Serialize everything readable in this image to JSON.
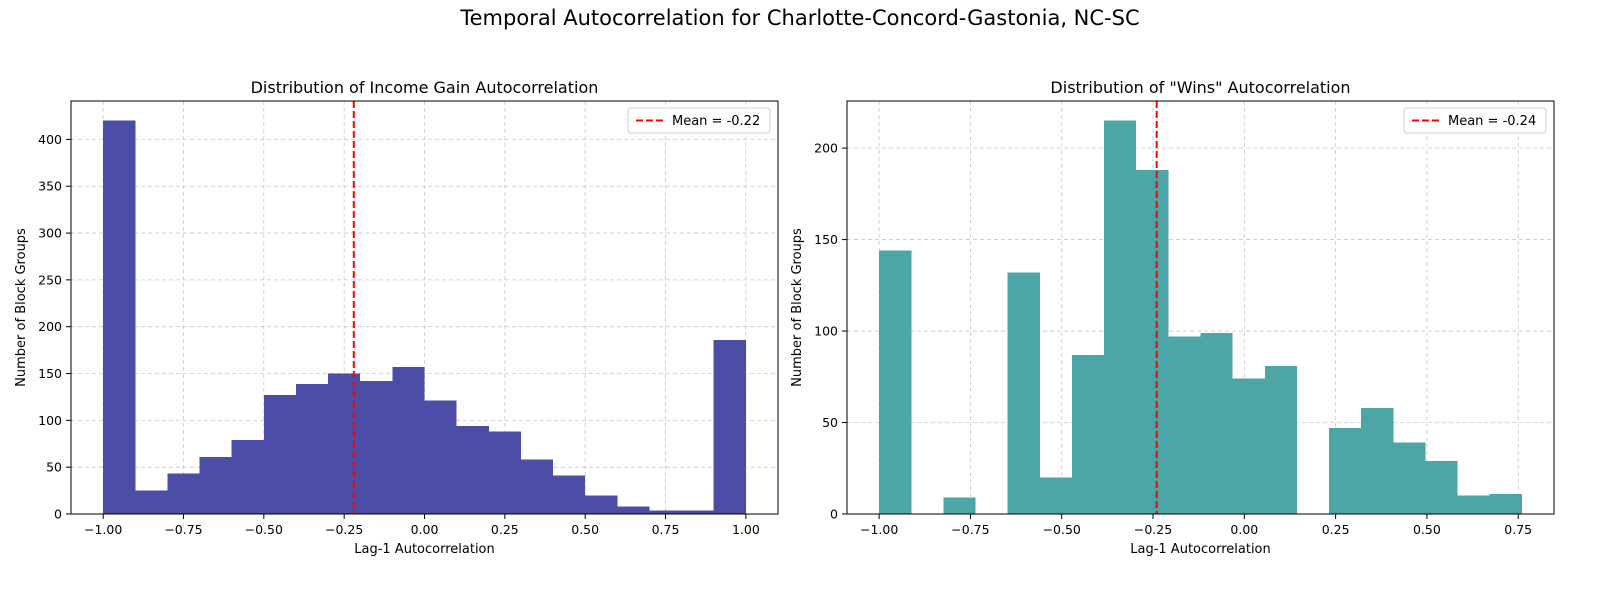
{
  "figure": {
    "title": "Temporal Autocorrelation for Charlotte-Concord-Gastonia, NC-SC"
  },
  "chart_data": [
    {
      "type": "bar",
      "title": "Distribution of Income Gain Autocorrelation",
      "xlabel": "Lag-1 Autocorrelation",
      "ylabel": "Number of Block Groups",
      "color": "#4B4DA6",
      "bin_edges": [
        -1.0,
        -0.9,
        -0.8,
        -0.7,
        -0.6,
        -0.5,
        -0.4,
        -0.3,
        -0.2,
        -0.1,
        0.0,
        0.1,
        0.2,
        0.3,
        0.4,
        0.5,
        0.6,
        0.7,
        0.8,
        0.9,
        1.0
      ],
      "values": [
        420,
        25,
        43,
        61,
        79,
        127,
        139,
        150,
        142,
        157,
        121,
        94,
        88,
        58,
        41,
        20,
        8,
        4,
        4,
        186
      ],
      "xlim": [
        -1.1,
        1.1
      ],
      "ylim": [
        0,
        441
      ],
      "xticks": [
        -1.0,
        -0.75,
        -0.5,
        -0.25,
        0.0,
        0.25,
        0.5,
        0.75,
        1.0
      ],
      "xtick_labels": [
        "−1.00",
        "−0.75",
        "−0.50",
        "−0.25",
        "0.00",
        "0.25",
        "0.50",
        "0.75",
        "1.00"
      ],
      "yticks": [
        0,
        50,
        100,
        150,
        200,
        250,
        300,
        350,
        400
      ],
      "ytick_labels": [
        "0",
        "50",
        "100",
        "150",
        "200",
        "250",
        "300",
        "350",
        "400"
      ],
      "mean": -0.22,
      "mean_color": "#FF0000",
      "legend": {
        "label": "Mean = -0.22",
        "position": "upper-right"
      },
      "grid": true
    },
    {
      "type": "bar",
      "title": "Distribution of \"Wins\" Autocorrelation",
      "xlabel": "Lag-1 Autocorrelation",
      "ylabel": "Number of Block Groups",
      "color": "#4CA6A6",
      "bin_edges": [
        -1.0,
        -0.912,
        -0.824,
        -0.736,
        -0.648,
        -0.56,
        -0.472,
        -0.384,
        -0.296,
        -0.208,
        -0.12,
        -0.032,
        0.056,
        0.144,
        0.232,
        0.32,
        0.408,
        0.496,
        0.584,
        0.672,
        0.76
      ],
      "values": [
        144,
        0,
        9,
        0,
        132,
        20,
        87,
        215,
        188,
        97,
        99,
        74,
        81,
        0,
        47,
        58,
        39,
        29,
        10,
        11
      ],
      "xlim": [
        -1.088,
        0.848
      ],
      "ylim": [
        0,
        225.75
      ],
      "xticks": [
        -1.0,
        -0.75,
        -0.5,
        -0.25,
        0.0,
        0.25,
        0.5,
        0.75
      ],
      "xtick_labels": [
        "−1.00",
        "−0.75",
        "−0.50",
        "−0.25",
        "0.00",
        "0.25",
        "0.50",
        "0.75"
      ],
      "yticks": [
        0,
        50,
        100,
        150,
        200
      ],
      "ytick_labels": [
        "0",
        "50",
        "100",
        "150",
        "200"
      ],
      "mean": -0.24,
      "mean_color": "#FF0000",
      "legend": {
        "label": "Mean = -0.24",
        "position": "upper-right"
      },
      "grid": true
    }
  ]
}
